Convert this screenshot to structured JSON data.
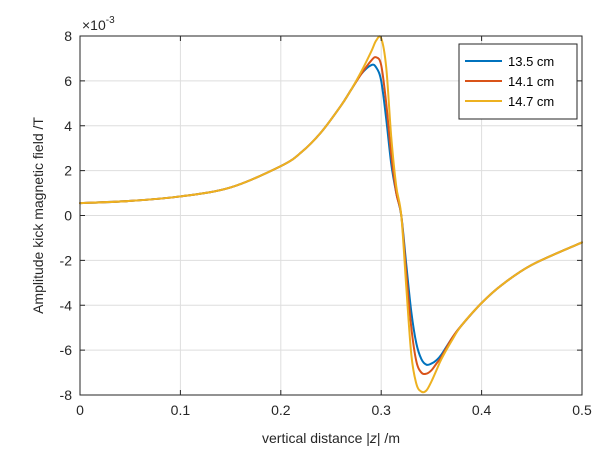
{
  "chart_data": {
    "type": "line",
    "title": "",
    "xlabel_prefix": "vertical distance |",
    "xlabel_var": "z",
    "xlabel_suffix": "| /m",
    "ylabel": "Amplitude kick magnetic field /T",
    "y_exponent_base": "×10",
    "y_exponent_power": "-3",
    "xlim": [
      0,
      0.5
    ],
    "ylim": [
      -8,
      8
    ],
    "y_scale_factor": 0.001,
    "xticks": [
      0,
      0.1,
      0.2,
      0.3,
      0.4,
      0.5
    ],
    "xtick_labels": [
      "0",
      "0.1",
      "0.2",
      "0.3",
      "0.4",
      "0.5"
    ],
    "yticks": [
      -8,
      -6,
      -4,
      -2,
      0,
      2,
      4,
      6,
      8
    ],
    "ytick_labels": [
      "-8",
      "-6",
      "-4",
      "-2",
      "0",
      "2",
      "4",
      "6",
      "8"
    ],
    "grid": true,
    "legend_position": "top-right",
    "series": [
      {
        "name": "13.5 cm",
        "color": "#0072BD",
        "x": [
          0,
          0.05,
          0.1,
          0.15,
          0.2,
          0.22,
          0.24,
          0.26,
          0.27,
          0.28,
          0.29,
          0.295,
          0.3,
          0.305,
          0.31,
          0.315,
          0.32,
          0.325,
          0.33,
          0.335,
          0.34,
          0.345,
          0.35,
          0.355,
          0.36,
          0.37,
          0.38,
          0.4,
          0.42,
          0.45,
          0.5
        ],
        "y": [
          0.55,
          0.65,
          0.85,
          1.25,
          2.2,
          2.8,
          3.7,
          4.9,
          5.6,
          6.3,
          6.7,
          6.6,
          6.0,
          4.3,
          2.3,
          1.0,
          0,
          -2.2,
          -4.3,
          -5.7,
          -6.4,
          -6.65,
          -6.6,
          -6.45,
          -6.2,
          -5.5,
          -4.9,
          -3.9,
          -3.1,
          -2.2,
          -1.2
        ]
      },
      {
        "name": "14.1 cm",
        "color": "#D95319",
        "x": [
          0,
          0.05,
          0.1,
          0.15,
          0.2,
          0.22,
          0.24,
          0.26,
          0.27,
          0.28,
          0.29,
          0.295,
          0.3,
          0.305,
          0.31,
          0.315,
          0.32,
          0.325,
          0.33,
          0.335,
          0.34,
          0.345,
          0.35,
          0.355,
          0.36,
          0.37,
          0.38,
          0.4,
          0.42,
          0.45,
          0.5
        ],
        "y": [
          0.55,
          0.65,
          0.85,
          1.25,
          2.2,
          2.8,
          3.7,
          4.9,
          5.6,
          6.3,
          6.9,
          7.05,
          6.7,
          5.0,
          2.7,
          1.0,
          0,
          -2.6,
          -5.0,
          -6.5,
          -7.0,
          -7.05,
          -6.9,
          -6.6,
          -6.3,
          -5.5,
          -4.9,
          -3.9,
          -3.1,
          -2.2,
          -1.2
        ]
      },
      {
        "name": "14.7 cm",
        "color": "#EDB120",
        "x": [
          0,
          0.05,
          0.1,
          0.15,
          0.2,
          0.22,
          0.24,
          0.26,
          0.27,
          0.28,
          0.29,
          0.295,
          0.3,
          0.305,
          0.31,
          0.315,
          0.32,
          0.325,
          0.33,
          0.335,
          0.34,
          0.345,
          0.35,
          0.355,
          0.36,
          0.37,
          0.38,
          0.4,
          0.42,
          0.45,
          0.5
        ],
        "y": [
          0.55,
          0.65,
          0.85,
          1.25,
          2.2,
          2.8,
          3.7,
          4.9,
          5.6,
          6.4,
          7.3,
          7.8,
          7.9,
          6.6,
          3.5,
          1.3,
          0,
          -3.2,
          -6.2,
          -7.5,
          -7.85,
          -7.8,
          -7.4,
          -6.9,
          -6.4,
          -5.6,
          -4.9,
          -3.9,
          -3.1,
          -2.2,
          -1.2
        ]
      }
    ]
  }
}
